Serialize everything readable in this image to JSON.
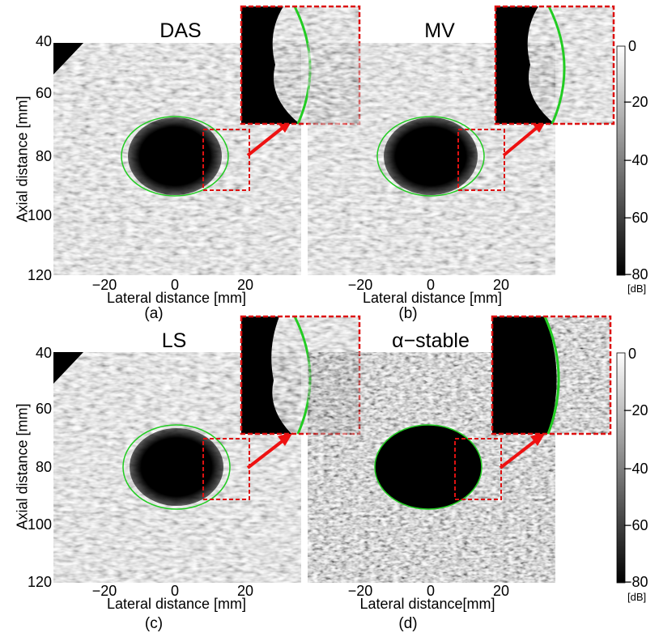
{
  "figure": {
    "panels": [
      {
        "title": "DAS",
        "caption": "(a)",
        "xlabel": "Lateral distance [mm]"
      },
      {
        "title": "MV",
        "caption": "(b)",
        "xlabel": "Lateral distance [mm]"
      },
      {
        "title": "LS",
        "caption": "(c)",
        "xlabel": "Lateral distance [mm]"
      },
      {
        "title": "α−stable",
        "caption": "(d)",
        "xlabel": "Lateral distance[mm]"
      }
    ],
    "ylabel": "Axial distance [mm]",
    "y_ticks": [
      "40",
      "60",
      "80",
      "100",
      "120"
    ],
    "x_ticks": [
      "−20",
      "0",
      "20"
    ],
    "colorbar": {
      "ticks": [
        "0",
        "−20",
        "−40",
        "−60",
        "−80"
      ],
      "unit": "[dB]"
    },
    "colors": {
      "cyst_outline": "#22cc22",
      "zoom_box": "#dd1111",
      "arrow": "#ee1111"
    }
  }
}
